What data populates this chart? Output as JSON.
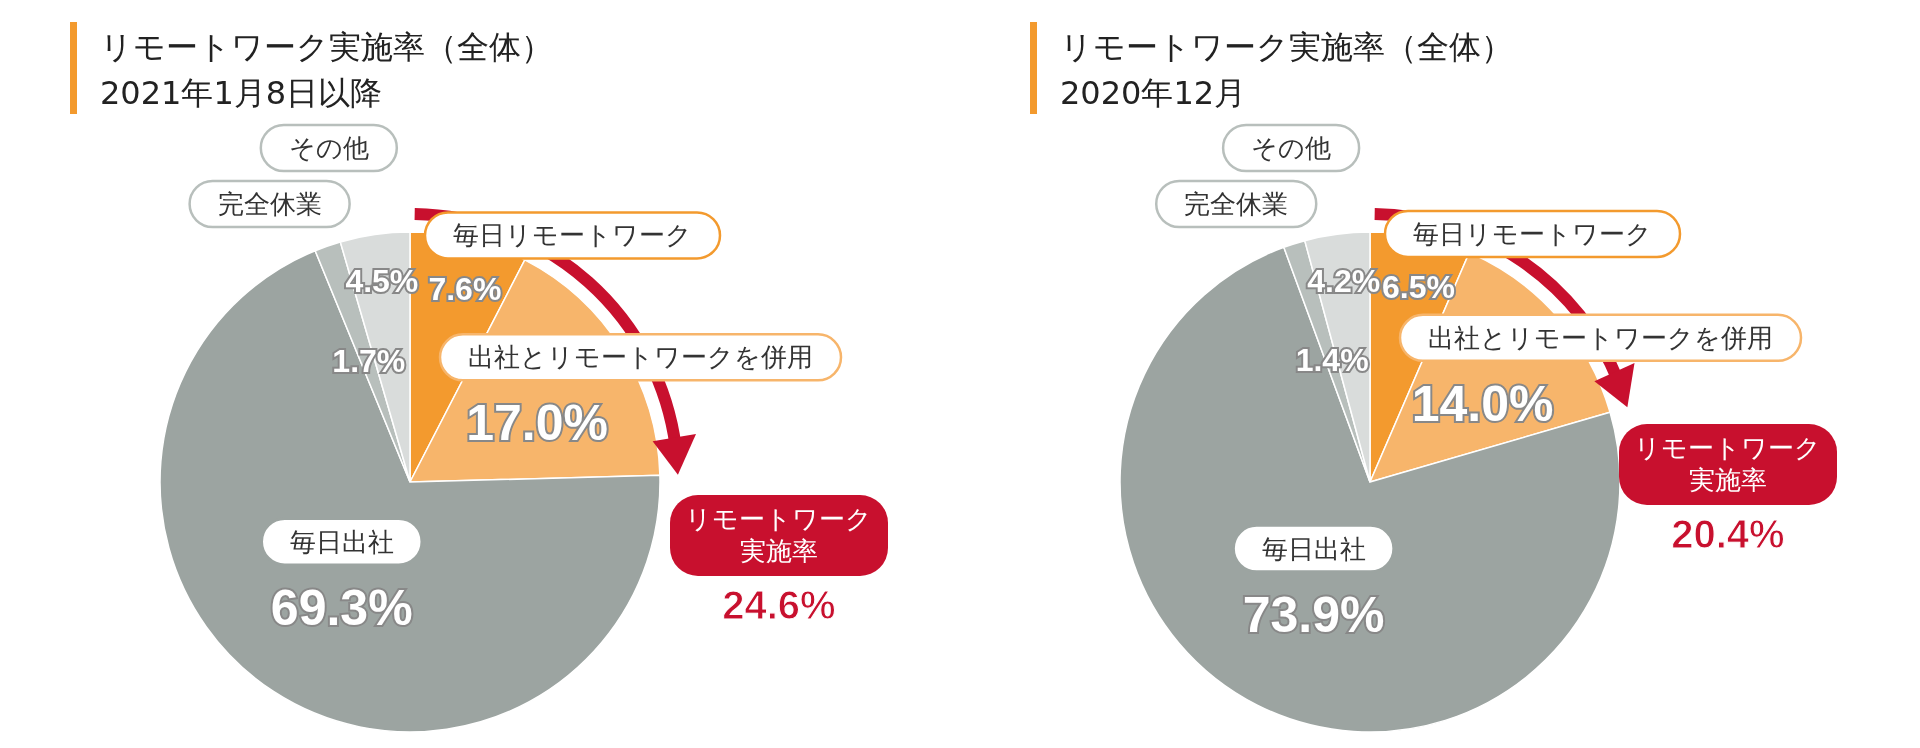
{
  "chart_data": [
    {
      "type": "pie",
      "title": "リモートワーク実施率（全体）",
      "subtitle": "2021年1月8日以降",
      "categories": [
        "毎日リモートワーク",
        "出社とリモートワークを併用",
        "毎日出社",
        "完全休業",
        "その他"
      ],
      "values": [
        7.6,
        17.0,
        69.3,
        1.7,
        4.5
      ],
      "value_labels": [
        "7.6%",
        "17.0%",
        "69.3%",
        "1.7%",
        "4.5%"
      ],
      "colors": [
        "#f39a2e",
        "#f7b56b",
        "#9ca4a1",
        "#b8bfbc",
        "#d9dcdb"
      ],
      "annotations": [
        "リモートワーク実施率",
        "24.6%"
      ]
    },
    {
      "type": "pie",
      "title": "リモートワーク実施率（全体）",
      "subtitle": "2020年12月",
      "categories": [
        "毎日リモートワーク",
        "出社とリモートワークを併用",
        "毎日出社",
        "完全休業",
        "その他"
      ],
      "values": [
        6.5,
        14.0,
        73.9,
        1.4,
        4.2
      ],
      "value_labels": [
        "6.5%",
        "14.0%",
        "73.9%",
        "1.4%",
        "4.2%"
      ],
      "colors": [
        "#f39a2e",
        "#f7b56b",
        "#9ca4a1",
        "#b8bfbc",
        "#d9dcdb"
      ],
      "annotations": [
        "リモートワーク実施率",
        "20.4%"
      ]
    }
  ]
}
